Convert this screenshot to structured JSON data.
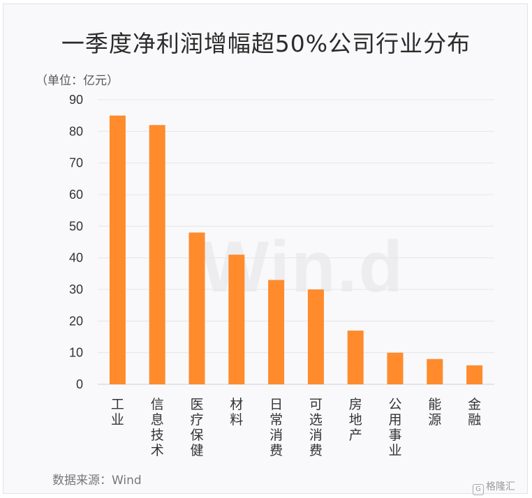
{
  "chart_data": {
    "type": "bar",
    "title": "一季度净利润增幅超50%公司行业分布",
    "unit_label": "（单位：亿元）",
    "source": "数据来源：Wind",
    "watermark": "Win.d",
    "categories": [
      "工业",
      "信息技术",
      "医疗保健",
      "材料",
      "日常消费",
      "可选消费",
      "房地产",
      "公用事业",
      "能源",
      "金融"
    ],
    "values": [
      85,
      82,
      48,
      41,
      33,
      30,
      17,
      10,
      8,
      6
    ],
    "ylim": [
      0,
      90
    ],
    "yticks": [
      0,
      10,
      20,
      30,
      40,
      50,
      60,
      70,
      80,
      90
    ],
    "grid": true,
    "bar_color": "#ff8b2c"
  },
  "logo": {
    "text": "格隆汇",
    "mark": "G"
  }
}
